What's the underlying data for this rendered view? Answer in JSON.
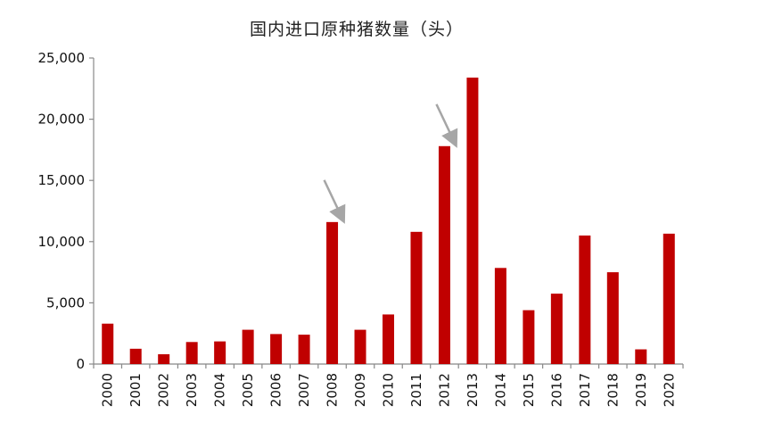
{
  "chart_data": {
    "type": "bar",
    "title": "国内进口原种猪数量（头）",
    "xlabel": "",
    "ylabel": "",
    "categories": [
      "2000",
      "2001",
      "2002",
      "2003",
      "2004",
      "2005",
      "2006",
      "2007",
      "2008",
      "2009",
      "2010",
      "2011",
      "2012",
      "2013",
      "2014",
      "2015",
      "2016",
      "2017",
      "2018",
      "2019",
      "2020"
    ],
    "values": [
      3300,
      1250,
      800,
      1800,
      1850,
      2800,
      2450,
      2400,
      11600,
      2800,
      4050,
      10800,
      17800,
      23400,
      7850,
      4400,
      5750,
      10500,
      7500,
      1200,
      10650
    ],
    "ylim": [
      0,
      25000
    ],
    "yticks": [
      0,
      5000,
      10000,
      15000,
      20000,
      25000
    ],
    "ytick_labels": [
      "0",
      "5,000",
      "10,000",
      "15,000",
      "20,000",
      "25,000"
    ],
    "grid": false,
    "legend": "none",
    "bar_color": "#c00000",
    "arrow_color": "#a6a6a6",
    "annotations": [
      {
        "type": "arrow",
        "category": "2008"
      },
      {
        "type": "arrow",
        "category": "2012"
      }
    ]
  }
}
